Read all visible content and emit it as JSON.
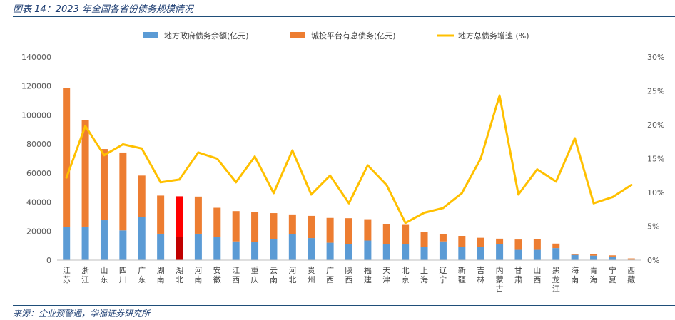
{
  "figure_title": "图表 14：2023 年全国各省份债务规模情况",
  "source": "来源：企业预警通，华福证券研究所",
  "colors": {
    "gov": "#5B9BD5",
    "lgfv": "#ED7D31",
    "growth": "#FFC000",
    "highlight_gov": "#C00000",
    "highlight_lgfv": "#FF0000"
  },
  "chart_data": {
    "type": "bar",
    "stacked": true,
    "highlight_category": "湖北",
    "categories": [
      "江苏",
      "浙江",
      "山东",
      "四川",
      "广东",
      "湖南",
      "湖北",
      "河南",
      "安徽",
      "江西",
      "重庆",
      "云南",
      "河北",
      "贵州",
      "广西",
      "陕西",
      "福建",
      "天津",
      "北京",
      "上海",
      "辽宁",
      "新疆",
      "吉林",
      "内蒙古",
      "甘肃",
      "山西",
      "黑龙江",
      "海南",
      "青海",
      "宁夏",
      "西藏"
    ],
    "series": [
      {
        "name": "地方政府债务余额(亿元)",
        "axis": "left",
        "type": "bar",
        "values": [
          22700,
          23100,
          27500,
          20500,
          29900,
          18200,
          15900,
          18200,
          15800,
          12900,
          12300,
          14300,
          18100,
          15200,
          12000,
          10900,
          13500,
          11300,
          11300,
          9100,
          12900,
          9000,
          8900,
          10900,
          7100,
          7100,
          8300,
          3600,
          3100,
          2500,
          300
        ]
      },
      {
        "name": "城投平台有息债务(亿元)",
        "axis": "left",
        "type": "bar",
        "values": [
          95800,
          73300,
          49100,
          53700,
          28400,
          26300,
          28100,
          25600,
          20300,
          20900,
          21100,
          18100,
          13400,
          15300,
          17100,
          18000,
          14700,
          13600,
          13000,
          10200,
          5100,
          7700,
          6500,
          3900,
          7100,
          7200,
          3100,
          700,
          1200,
          800,
          900
        ]
      },
      {
        "name": "地方总债务增速 (%)",
        "axis": "right",
        "type": "line",
        "values": [
          12.2,
          19.8,
          15.5,
          17.1,
          16.5,
          11.5,
          11.9,
          15.9,
          15.0,
          11.5,
          15.3,
          9.9,
          16.2,
          9.7,
          12.5,
          8.4,
          14.0,
          11.1,
          5.5,
          7.0,
          7.7,
          9.9,
          15.0,
          24.3,
          9.7,
          13.4,
          11.6,
          18.0,
          8.4,
          9.3,
          11.1
        ]
      }
    ],
    "y_left": {
      "min": 0,
      "max": 140000,
      "step": 20000
    },
    "y_right": {
      "min": 0,
      "max": 30,
      "step": 5,
      "unit": "%"
    },
    "legend_position": "top-center",
    "grid": false
  }
}
